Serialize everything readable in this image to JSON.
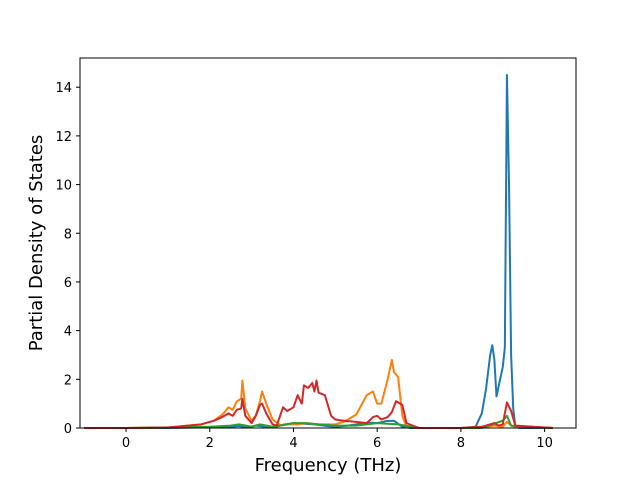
{
  "chart_data": {
    "type": "line",
    "title": "",
    "xlabel": "Frequency (THz)",
    "ylabel": "Partial Density of States",
    "xlim": [
      -1.1,
      10.75
    ],
    "ylim": [
      0,
      15.2
    ],
    "xticks": [
      0,
      2,
      4,
      6,
      8,
      10
    ],
    "yticks": [
      0,
      2,
      4,
      6,
      8,
      10,
      12,
      14
    ],
    "grid": false,
    "series": [
      {
        "color": "#1f77b4",
        "x": [
          -1.0,
          0.0,
          1.0,
          2.0,
          2.3,
          2.5,
          2.7,
          2.9,
          3.1,
          3.3,
          3.5,
          3.8,
          4.0,
          4.2,
          4.5,
          4.8,
          5.0,
          5.3,
          5.5,
          5.8,
          6.0,
          6.2,
          6.4,
          6.6,
          6.8,
          7.5,
          8.0,
          8.35,
          8.5,
          8.6,
          8.7,
          8.75,
          8.8,
          8.85,
          9.0,
          9.05,
          9.1,
          9.15,
          9.2,
          9.25,
          9.3,
          9.4,
          10.2
        ],
        "y": [
          0,
          0,
          0,
          0.03,
          0.06,
          0.05,
          0.08,
          0.02,
          0.1,
          0.06,
          0.02,
          0.15,
          0.2,
          0.18,
          0.15,
          0.08,
          0.05,
          0.1,
          0.15,
          0.22,
          0.2,
          0.28,
          0.3,
          0.05,
          0.0,
          0,
          0,
          0.05,
          0.6,
          1.6,
          3.0,
          3.4,
          2.8,
          1.3,
          2.5,
          3.3,
          14.5,
          10.0,
          3.0,
          0.8,
          0.05,
          0,
          0
        ]
      },
      {
        "color": "#ff7f0e",
        "x": [
          -1.0,
          0.0,
          1.0,
          1.8,
          2.1,
          2.3,
          2.45,
          2.55,
          2.65,
          2.75,
          2.78,
          2.85,
          3.0,
          3.1,
          3.2,
          3.25,
          3.35,
          3.5,
          3.7,
          3.9,
          4.1,
          4.3,
          4.6,
          5.0,
          5.2,
          5.5,
          5.75,
          5.9,
          6.0,
          6.1,
          6.25,
          6.35,
          6.4,
          6.5,
          6.6,
          6.7,
          7.0,
          8.0,
          8.6,
          8.8,
          9.0,
          9.1,
          9.2,
          9.3,
          10.2
        ],
        "y": [
          0,
          0,
          0.02,
          0.15,
          0.3,
          0.55,
          0.85,
          0.75,
          1.1,
          1.2,
          1.95,
          0.8,
          0.3,
          0.5,
          1.1,
          1.5,
          1.0,
          0.35,
          0.1,
          0.15,
          0.15,
          0.2,
          0.15,
          0.15,
          0.25,
          0.55,
          1.35,
          1.5,
          1.0,
          1.0,
          2.0,
          2.8,
          2.3,
          2.1,
          0.5,
          0.05,
          0,
          0,
          0.05,
          0.1,
          0.05,
          0.25,
          0.1,
          0.05,
          0
        ]
      },
      {
        "color": "#2ca02c",
        "x": [
          -1.0,
          0.0,
          2.0,
          2.5,
          2.7,
          3.0,
          3.2,
          3.5,
          4.0,
          4.3,
          4.6,
          5.0,
          5.5,
          6.0,
          6.5,
          7.0,
          8.5,
          9.0,
          9.1,
          9.2,
          10.2
        ],
        "y": [
          0,
          0,
          0.05,
          0.1,
          0.15,
          0.05,
          0.15,
          0.05,
          0.2,
          0.2,
          0.15,
          0.1,
          0.1,
          0.2,
          0.15,
          0,
          0,
          0.3,
          0.5,
          0.1,
          0
        ]
      },
      {
        "color": "#d62728",
        "x": [
          -1.0,
          0.0,
          1.0,
          1.8,
          2.1,
          2.3,
          2.45,
          2.55,
          2.65,
          2.75,
          2.78,
          2.85,
          3.0,
          3.1,
          3.2,
          3.25,
          3.35,
          3.5,
          3.6,
          3.75,
          3.85,
          4.0,
          4.1,
          4.2,
          4.25,
          4.35,
          4.45,
          4.5,
          4.55,
          4.6,
          4.75,
          4.9,
          5.0,
          5.2,
          5.5,
          5.75,
          5.9,
          6.0,
          6.1,
          6.25,
          6.35,
          6.45,
          6.55,
          6.6,
          6.7,
          7.0,
          8.0,
          8.5,
          8.7,
          8.8,
          8.9,
          9.0,
          9.1,
          9.2,
          9.3,
          10.2
        ],
        "y": [
          0,
          0,
          0.02,
          0.15,
          0.3,
          0.45,
          0.6,
          0.5,
          0.75,
          0.8,
          1.2,
          0.5,
          0.2,
          0.5,
          0.95,
          1.0,
          0.6,
          0.15,
          0.1,
          0.85,
          0.7,
          0.85,
          1.35,
          1.0,
          1.75,
          1.65,
          1.85,
          1.5,
          1.95,
          1.45,
          1.35,
          0.5,
          0.35,
          0.3,
          0.25,
          0.2,
          0.45,
          0.5,
          0.35,
          0.45,
          0.65,
          1.1,
          1.0,
          0.95,
          0.2,
          0,
          0,
          0.05,
          0.15,
          0.2,
          0.1,
          0.15,
          1.05,
          0.7,
          0.1,
          0
        ]
      }
    ]
  }
}
